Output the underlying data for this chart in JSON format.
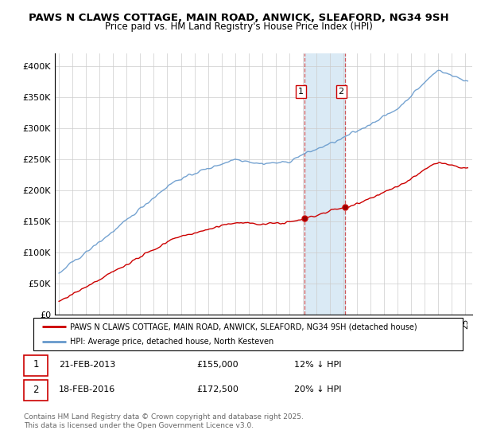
{
  "title1": "PAWS N CLAWS COTTAGE, MAIN ROAD, ANWICK, SLEAFORD, NG34 9SH",
  "title2": "Price paid vs. HM Land Registry's House Price Index (HPI)",
  "ylim": [
    0,
    420000
  ],
  "yticks": [
    0,
    50000,
    100000,
    150000,
    200000,
    250000,
    300000,
    350000,
    400000
  ],
  "ytick_labels": [
    "£0",
    "£50K",
    "£100K",
    "£150K",
    "£200K",
    "£250K",
    "£300K",
    "£350K",
    "£400K"
  ],
  "sale1_x": 2013.13,
  "sale1_price": 155000,
  "sale2_x": 2016.12,
  "sale2_price": 172500,
  "legend_line1": "PAWS N CLAWS COTTAGE, MAIN ROAD, ANWICK, SLEAFORD, NG34 9SH (detached house)",
  "legend_line2": "HPI: Average price, detached house, North Kesteven",
  "footer": "Contains HM Land Registry data © Crown copyright and database right 2025.\nThis data is licensed under the Open Government Licence v3.0.",
  "line_color_red": "#cc0000",
  "line_color_blue": "#6699cc",
  "shade_color": "#daeaf5",
  "vline_color": "#cc3333",
  "background_color": "#ffffff",
  "grid_color": "#cccccc"
}
